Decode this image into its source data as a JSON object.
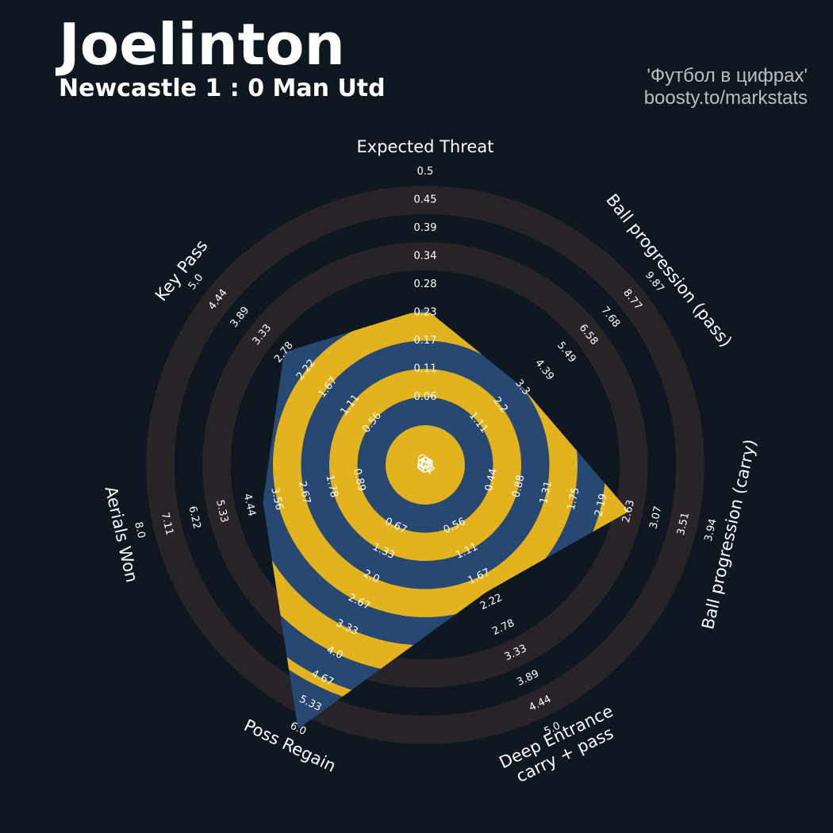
{
  "header": {
    "player": "Joelinton",
    "match": "Newcastle 1 : 0 Man Utd",
    "credit_line1": "'Футбол в цифрах'",
    "credit_line2": "boosty.to/markstats"
  },
  "colors": {
    "background": "#0f1820",
    "ring_band": "#28242a",
    "fill_blue": "#264872",
    "fill_gold": "#e2b31e",
    "text": "#ffffff"
  },
  "chart_data": {
    "type": "radar",
    "title": "Joelinton",
    "subtitle": "Newcastle 1 : 0 Man Utd",
    "axes": [
      {
        "label": [
          "Expected Threat"
        ],
        "min": 0.0,
        "max": 0.5,
        "value": 0.23,
        "ticks": [
          "0.0",
          "0.06",
          "0.11",
          "0.17",
          "0.23",
          "0.28",
          "0.34",
          "0.39",
          "0.45",
          "0.5"
        ]
      },
      {
        "label": [
          "Ball progression (pass)"
        ],
        "min": 0.0,
        "max": 9.87,
        "value": 3.3,
        "ticks": [
          "0.01",
          "1.11",
          "2.2",
          "3.3",
          "4.39",
          "5.49",
          "6.58",
          "7.68",
          "8.77",
          "9.87"
        ]
      },
      {
        "label": [
          "Ball progression (carry)"
        ],
        "min": 0.0,
        "max": 3.94,
        "value": 2.63,
        "ticks": [
          "0.0",
          "0.44",
          "0.88",
          "1.31",
          "1.75",
          "2.19",
          "2.63",
          "3.07",
          "3.51",
          "3.94"
        ]
      },
      {
        "label": [
          "Deep Entrance",
          "carry + pass"
        ],
        "min": 0.0,
        "max": 5.0,
        "value": 2.0,
        "ticks": [
          "0.0",
          "0.56",
          "1.11",
          "1.67",
          "2.22",
          "2.78",
          "3.33",
          "3.89",
          "4.44",
          "5.0"
        ]
      },
      {
        "label": [
          "Poss Regain"
        ],
        "min": 0.0,
        "max": 6.0,
        "value": 6.0,
        "ticks": [
          "0.0",
          "0.67",
          "1.33",
          "2.0",
          "2.67",
          "3.33",
          "4.0",
          "4.67",
          "5.33",
          "6.0"
        ]
      },
      {
        "label": [
          "Aerials Won"
        ],
        "min": 0.0,
        "max": 8.0,
        "value": 4.0,
        "ticks": [
          "0.0",
          "0.89",
          "1.78",
          "2.67",
          "3.56",
          "4.44",
          "5.33",
          "6.22",
          "7.11",
          "8.0"
        ]
      },
      {
        "label": [
          "Key Pass"
        ],
        "min": 0.0,
        "max": 5.0,
        "value": 2.78,
        "ticks": [
          "0.0",
          "0.56",
          "1.11",
          "1.67",
          "2.22",
          "2.78",
          "3.33",
          "3.89",
          "4.44",
          "5.0"
        ]
      }
    ],
    "rings": 10,
    "grid": true,
    "legend": "none"
  }
}
